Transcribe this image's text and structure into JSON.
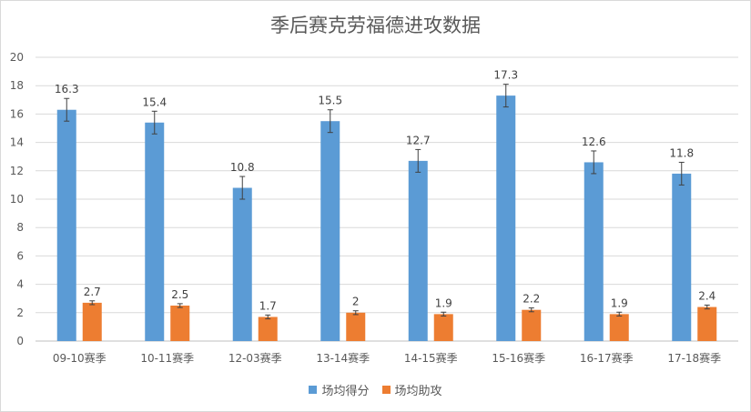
{
  "chart_data": {
    "type": "bar",
    "title": "季后赛克劳福德进攻数据",
    "categories": [
      "09-10赛季",
      "10-11赛季",
      "12-03赛季",
      "13-14赛季",
      "14-15赛季",
      "15-16赛季",
      "16-17赛季",
      "17-18赛季"
    ],
    "series": [
      {
        "name": "场均得分",
        "color": "#5b9bd5",
        "values": [
          16.3,
          15.4,
          10.8,
          15.5,
          12.7,
          17.3,
          12.6,
          11.8
        ],
        "labels": [
          "16.3",
          "15.4",
          "10.8",
          "15.5",
          "12.7",
          "17.3",
          "12.6",
          "11.8"
        ],
        "error": 0.8
      },
      {
        "name": "场均助攻",
        "color": "#ed7d31",
        "values": [
          2.7,
          2.5,
          1.7,
          2.0,
          1.9,
          2.2,
          1.9,
          2.4
        ],
        "labels": [
          "2.7",
          "2.5",
          "1.7",
          "2",
          "1.9",
          "2.2",
          "1.9",
          "2.4"
        ],
        "error": 0.135
      }
    ],
    "ylim": [
      0,
      20
    ],
    "yticks": [
      "0",
      "2",
      "4",
      "6",
      "8",
      "10",
      "12",
      "14",
      "16",
      "18",
      "20"
    ],
    "xlabel": "",
    "ylabel": "",
    "grid": true,
    "legend": "bottom",
    "error_bars": true,
    "grid_color": "#d9d9d9",
    "axis_color": "#bfbfbf"
  }
}
